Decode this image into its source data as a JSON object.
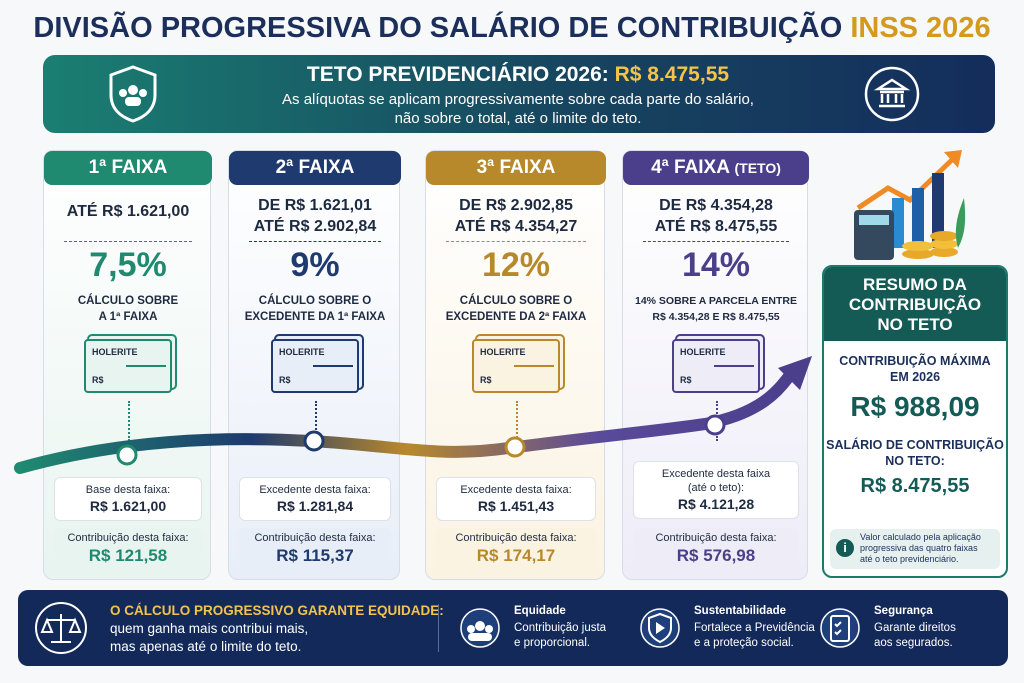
{
  "title": {
    "main": "DIVISÃO PROGRESSIVA DO SALÁRIO DE CONTRIBUIÇÃO",
    "highlight": "INSS 2026"
  },
  "banner": {
    "label": "TETO PREVIDENCIÁRIO 2026:",
    "value": "R$ 8.475,55",
    "lines": [
      "As alíquotas se aplicam progressivamente sobre cada parte do salário,",
      "não sobre o total, até o limite do teto."
    ]
  },
  "brackets": [
    {
      "header": "1ª FAIXA",
      "color": "#1f8a70",
      "range": [
        "ATÉ R$ 1.621,00"
      ],
      "rate": "7,5%",
      "description": [
        "CÁLCULO SOBRE",
        "A 1ª FAIXA"
      ],
      "slip_label": "HOLERITE",
      "slip_currency": "R$",
      "base_label": [
        "Base desta faixa:"
      ],
      "base_value": "R$ 1.621,00",
      "contribution_label": "Contribuição desta faixa:",
      "contribution_value": "R$ 121,58"
    },
    {
      "header": "2ª FAIXA",
      "color": "#1e3a6e",
      "range": [
        "DE R$ 1.621,01",
        "ATÉ R$ 2.902,84"
      ],
      "rate": "9%",
      "description": [
        "CÁLCULO SOBRE O",
        "EXCEDENTE DA 1ª FAIXA"
      ],
      "slip_label": "HOLERITE",
      "slip_currency": "R$",
      "base_label": [
        "Excedente desta faixa:"
      ],
      "base_value": "R$ 1.281,84",
      "contribution_label": "Contribuição desta faixa:",
      "contribution_value": "R$ 115,37"
    },
    {
      "header": "3ª FAIXA",
      "color": "#b8892b",
      "range": [
        "DE R$ 2.902,85",
        "ATÉ R$ 4.354,27"
      ],
      "rate": "12%",
      "description": [
        "CÁLCULO SOBRE O",
        "EXCEDENTE DA 2ª FAIXA"
      ],
      "slip_label": "HOLERITE",
      "slip_currency": "R$",
      "base_label": [
        "Excedente desta faixa:"
      ],
      "base_value": "R$ 1.451,43",
      "contribution_label": "Contribuição desta faixa:",
      "contribution_value": "R$ 174,17"
    },
    {
      "header": "4ª FAIXA",
      "header_note": "(TETO)",
      "color": "#4b3f8c",
      "range": [
        "DE R$ 4.354,28",
        "ATÉ R$ 8.475,55"
      ],
      "rate": "14%",
      "description": [
        "14% SOBRE A PARCELA ENTRE",
        "R$ 4.354,28 E R$ 8.475,55"
      ],
      "slip_label": "HOLERITE",
      "slip_currency": "R$",
      "base_label": [
        "Excedente desta faixa",
        "(até o teto):"
      ],
      "base_value": "R$ 4.121,28",
      "contribution_label": "Contribuição desta faixa:",
      "contribution_value": "R$ 576,98"
    }
  ],
  "summary": {
    "title": [
      "RESUMO DA",
      "CONTRIBUIÇÃO",
      "NO TETO"
    ],
    "max_label": [
      "CONTRIBUIÇÃO MÁXIMA",
      "EM 2026"
    ],
    "max_value": "R$ 988,09",
    "salary_label": [
      "SALÁRIO DE CONTRIBUIÇÃO",
      "NO TETO:"
    ],
    "salary_value": "R$ 8.475,55",
    "note": [
      "Valor calculado pela aplicação",
      "progressiva das quatro faixas",
      "até o teto previdenciário."
    ]
  },
  "footer": {
    "highlight": "O CÁLCULO PROGRESSIVO GARANTE EQUIDADE:",
    "lines": [
      "quem ganha mais contribui mais,",
      "mas apenas até o limite do teto."
    ],
    "items": [
      {
        "title": "Equidade",
        "lines": [
          "Contribuição justa",
          "e proporcional."
        ]
      },
      {
        "title": "Sustentabilidade",
        "lines": [
          "Fortalece a Previdência",
          "e a proteção social."
        ]
      },
      {
        "title": "Segurança",
        "lines": [
          "Garante direitos",
          "aos segurados."
        ]
      }
    ]
  }
}
